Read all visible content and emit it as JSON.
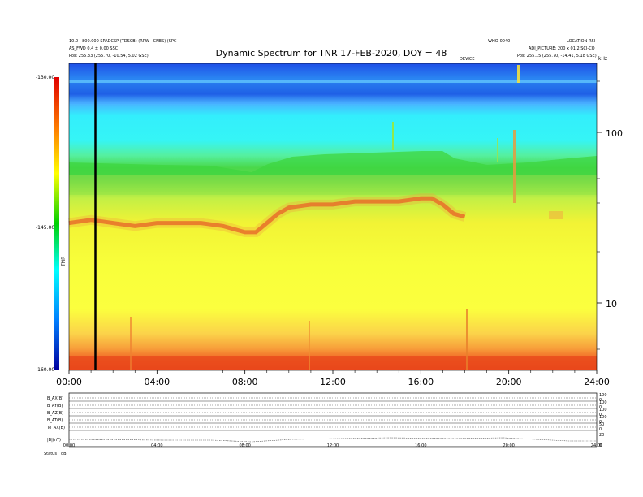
{
  "header": {
    "title": "Dynamic Spectrum for TNR 17-FEB-2020, DOY = 48",
    "left_line1": "10.0 - 800.000 SPADCSP (TDSCB) (RPW - CNES) (SPC",
    "left_line2": "AS_FWD 0.4 ± 0.00 SSC",
    "left_line3": "Pos:   255.33 (255.70, -10.54, 5.02 GSE)",
    "right_line1": "WHO-0040",
    "right_line2": "LOCATION-RSI",
    "right_line3": "ADJ_PICTURE: 200 x 01.2 SCI-CO",
    "right_line4": "Pos:   255.15 (255.70, -14.41, 5.18 GSE)",
    "mid_small": "DEVICE"
  },
  "colorbar": {
    "top_label": "-130.00",
    "mid_label": "-145.00",
    "bottom_label": "-160.00",
    "unit_label": "TNR"
  },
  "right_axis": {
    "labels": [
      "100",
      "10"
    ],
    "top_label": "kHz"
  },
  "chart_data": {
    "type": "heatmap",
    "title": "Dynamic Spectrum for TNR 17-FEB-2020, DOY = 48",
    "x_ticks": [
      "00:00",
      "04:00",
      "08:00",
      "12:00",
      "16:00",
      "20:00",
      "24:00"
    ],
    "xlim_hours": [
      0,
      24
    ],
    "y_scale": "log",
    "y_ticks_khz": [
      100,
      10
    ],
    "color_range_db": [
      -160,
      -130
    ],
    "colorbar_ticks": [
      -130,
      -145,
      -160
    ],
    "vertical_marker_hour": 1.2,
    "ridge_series": {
      "hours": [
        0,
        1,
        2,
        3,
        4,
        5,
        6,
        7,
        8,
        8.5,
        9,
        9.5,
        10,
        11,
        12,
        13,
        14,
        15,
        16,
        16.5,
        17,
        17.5,
        18
      ],
      "level": [
        0.52,
        0.51,
        0.52,
        0.53,
        0.52,
        0.52,
        0.52,
        0.53,
        0.55,
        0.55,
        0.52,
        0.49,
        0.47,
        0.46,
        0.46,
        0.45,
        0.45,
        0.45,
        0.44,
        0.44,
        0.46,
        0.49,
        0.5
      ]
    }
  },
  "panel": {
    "row_labels": [
      "B_AX(B)",
      "B_AY(B)",
      "B_AZ(B)",
      "B_AT(B)",
      "Te_AX(B)",
      "|B|(nT)"
    ],
    "right_labels": [
      "100",
      "0",
      "100",
      "0",
      "100",
      "0",
      "100",
      "0",
      "50",
      "0",
      "20",
      "0"
    ],
    "x_ticks": [
      "00:00",
      "04:00",
      "08:00",
      "12:00",
      "16:00",
      "20:00",
      "24:00"
    ],
    "footer_left": "Status",
    "footer_right": "dB"
  }
}
